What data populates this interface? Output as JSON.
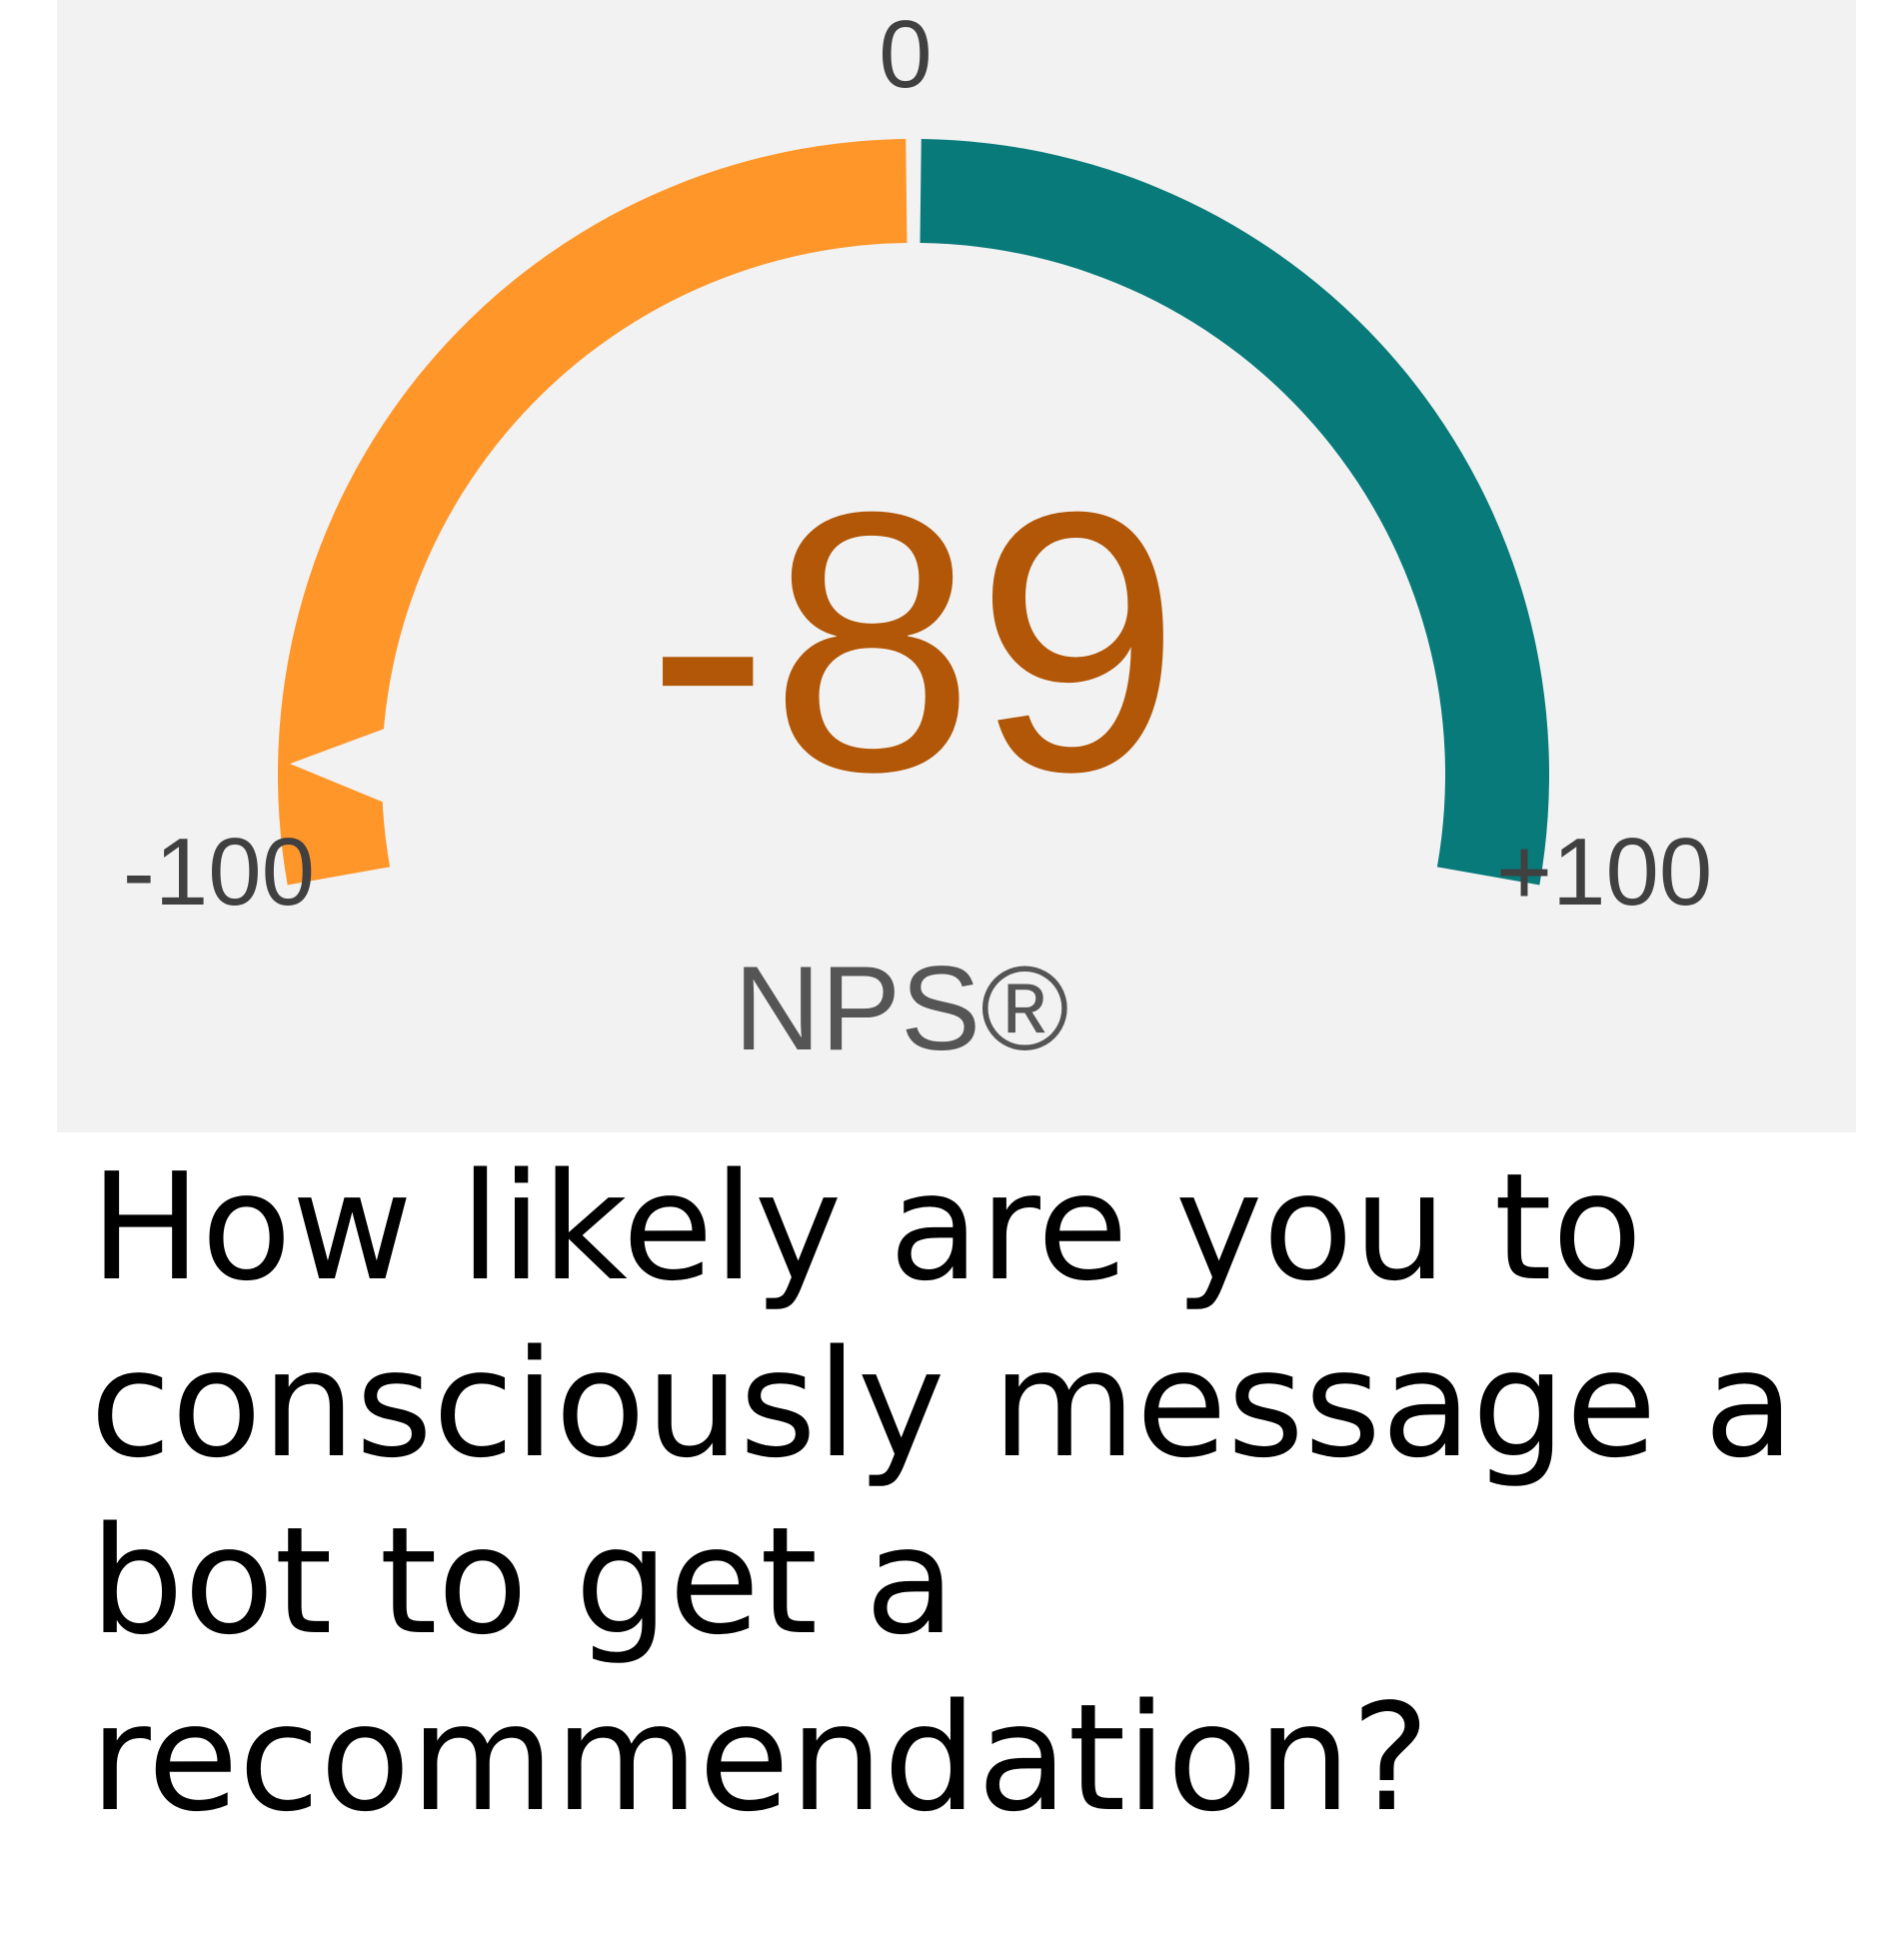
{
  "question": "How likely are you to consciously message a bot to get a recommendation?",
  "chart_data": {
    "type": "gauge",
    "metric_label": "NPS®",
    "value": -89,
    "value_text": "-89",
    "min": -100,
    "max": 100,
    "mid": 0,
    "tick_labels": {
      "min": "-100",
      "mid": "0",
      "max": "+100"
    },
    "segments": [
      {
        "from": -100,
        "to": 0,
        "color": "#ff962a"
      },
      {
        "from": 0,
        "to": 100,
        "color": "#087a7a"
      }
    ],
    "value_color": "#b25707",
    "panel_color": "#f2f2f2"
  }
}
